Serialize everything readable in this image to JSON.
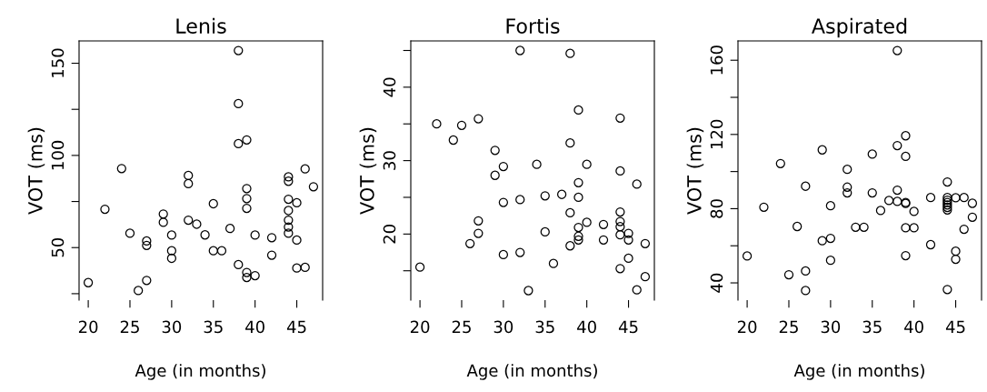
{
  "chart_data": [
    {
      "type": "scatter",
      "title": "Lenis",
      "xlabel": "Age (in months)",
      "ylabel": "VOT (ms)",
      "marker": "circle",
      "grid": false,
      "legend": false,
      "xlim": [
        18.9,
        48.1
      ],
      "ylim": [
        21.5,
        162.1
      ],
      "xticks": [
        20,
        25,
        30,
        35,
        40,
        45
      ],
      "yticks": [
        {
          "value": 25,
          "label": null
        },
        50,
        {
          "value": 75,
          "label": null
        },
        100,
        {
          "value": 125,
          "label": null
        },
        150
      ],
      "series": [
        {
          "color": "#000000",
          "x": [
            20,
            22,
            24,
            25,
            26,
            27,
            27,
            27,
            29,
            29,
            30,
            30,
            30,
            32,
            32,
            32,
            33,
            34,
            35,
            35,
            36,
            37,
            38,
            38,
            38,
            38,
            39,
            39,
            39,
            39,
            39,
            39,
            40,
            40,
            42,
            42,
            44,
            44,
            44,
            44,
            44,
            44,
            44,
            45,
            45,
            45,
            46,
            46,
            47
          ],
          "values": [
            31,
            70.8,
            92.9,
            57.8,
            26.7,
            53.6,
            51.2,
            32.2,
            68.2,
            63.7,
            56.8,
            48.3,
            44.2,
            89.1,
            84.7,
            64.9,
            62.7,
            56.9,
            73.8,
            48.3,
            48.3,
            60.4,
            156.9,
            128.1,
            106.4,
            40.8,
            108.4,
            82.0,
            76.6,
            71.3,
            36.5,
            33.8,
            56.8,
            34.8,
            55.4,
            45.9,
            88.4,
            86.0,
            76.2,
            70.1,
            64.9,
            61.2,
            57.8,
            74.3,
            54.1,
            38.9,
            92.7,
            39.3,
            83.0
          ]
        }
      ]
    },
    {
      "type": "scatter",
      "title": "Fortis",
      "xlabel": "Age (in months)",
      "ylabel": "VOT (ms)",
      "marker": "circle",
      "grid": false,
      "legend": false,
      "xlim": [
        18.9,
        48.1
      ],
      "ylim": [
        11.0,
        46.3
      ],
      "xticks": [
        20,
        25,
        30,
        35,
        40,
        45
      ],
      "yticks": [
        {
          "value": 15,
          "label": null
        },
        20,
        {
          "value": 25,
          "label": null
        },
        30,
        {
          "value": 35,
          "label": null
        },
        40,
        {
          "value": 45,
          "label": null
        }
      ],
      "series": [
        {
          "color": "#000000",
          "x": [
            20,
            22,
            24,
            25,
            26,
            27,
            27,
            27,
            29,
            29,
            30,
            30,
            30,
            32,
            32,
            32,
            33,
            34,
            35,
            35,
            36,
            37,
            38,
            38,
            38,
            38,
            39,
            39,
            39,
            39,
            39,
            39,
            40,
            40,
            42,
            42,
            44,
            44,
            44,
            44,
            44,
            44,
            44,
            45,
            45,
            45,
            46,
            46,
            47,
            47
          ],
          "values": [
            15.5,
            35.0,
            32.8,
            34.8,
            18.7,
            35.7,
            21.8,
            20.1,
            31.4,
            28.0,
            29.2,
            24.3,
            17.2,
            45.0,
            24.7,
            17.5,
            12.3,
            29.5,
            25.2,
            20.3,
            16.0,
            25.4,
            44.6,
            32.4,
            22.9,
            18.4,
            36.9,
            27.0,
            25.0,
            20.9,
            19.7,
            19.2,
            29.5,
            21.6,
            21.3,
            19.2,
            35.8,
            28.6,
            23.0,
            21.7,
            21.0,
            19.9,
            15.3,
            20.1,
            19.2,
            16.7,
            26.8,
            12.4,
            18.7,
            14.2
          ]
        }
      ]
    },
    {
      "type": "scatter",
      "title": "Aspirated",
      "xlabel": "Age (in months)",
      "ylabel": "VOT (ms)",
      "marker": "circle",
      "grid": false,
      "legend": false,
      "xlim": [
        18.9,
        48.1
      ],
      "ylim": [
        30.7,
        170.4
      ],
      "xticks": [
        20,
        25,
        30,
        35,
        40,
        45
      ],
      "yticks": [
        40,
        {
          "value": 60,
          "label": null
        },
        80,
        {
          "value": 100,
          "label": null
        },
        120,
        {
          "value": 140,
          "label": null
        },
        160
      ],
      "series": [
        {
          "color": "#000000",
          "x": [
            20,
            22,
            24,
            25,
            26,
            27,
            27,
            27,
            29,
            29,
            30,
            30,
            30,
            32,
            32,
            32,
            33,
            34,
            35,
            35,
            36,
            37,
            38,
            38,
            38,
            38,
            39,
            39,
            39,
            39,
            39,
            39,
            40,
            40,
            42,
            42,
            44,
            44,
            44,
            44,
            44,
            44,
            44,
            44,
            45,
            45,
            45,
            46,
            46,
            47,
            47
          ],
          "values": [
            54.5,
            80.8,
            104.3,
            44.4,
            70.4,
            92.1,
            46.4,
            35.9,
            111.7,
            62.7,
            81.6,
            64.0,
            52.2,
            101.2,
            91.6,
            88.5,
            70.0,
            70.0,
            109.4,
            88.5,
            79.0,
            84.4,
            165.2,
            114.0,
            90.0,
            83.9,
            119.3,
            108.2,
            83.3,
            82.8,
            69.7,
            54.7,
            78.5,
            69.7,
            86.0,
            60.6,
            94.4,
            86.0,
            84.6,
            83.3,
            82.0,
            80.7,
            79.3,
            36.4,
            85.9,
            57.1,
            52.7,
            86.0,
            68.9,
            82.9,
            75.4
          ]
        }
      ]
    }
  ]
}
